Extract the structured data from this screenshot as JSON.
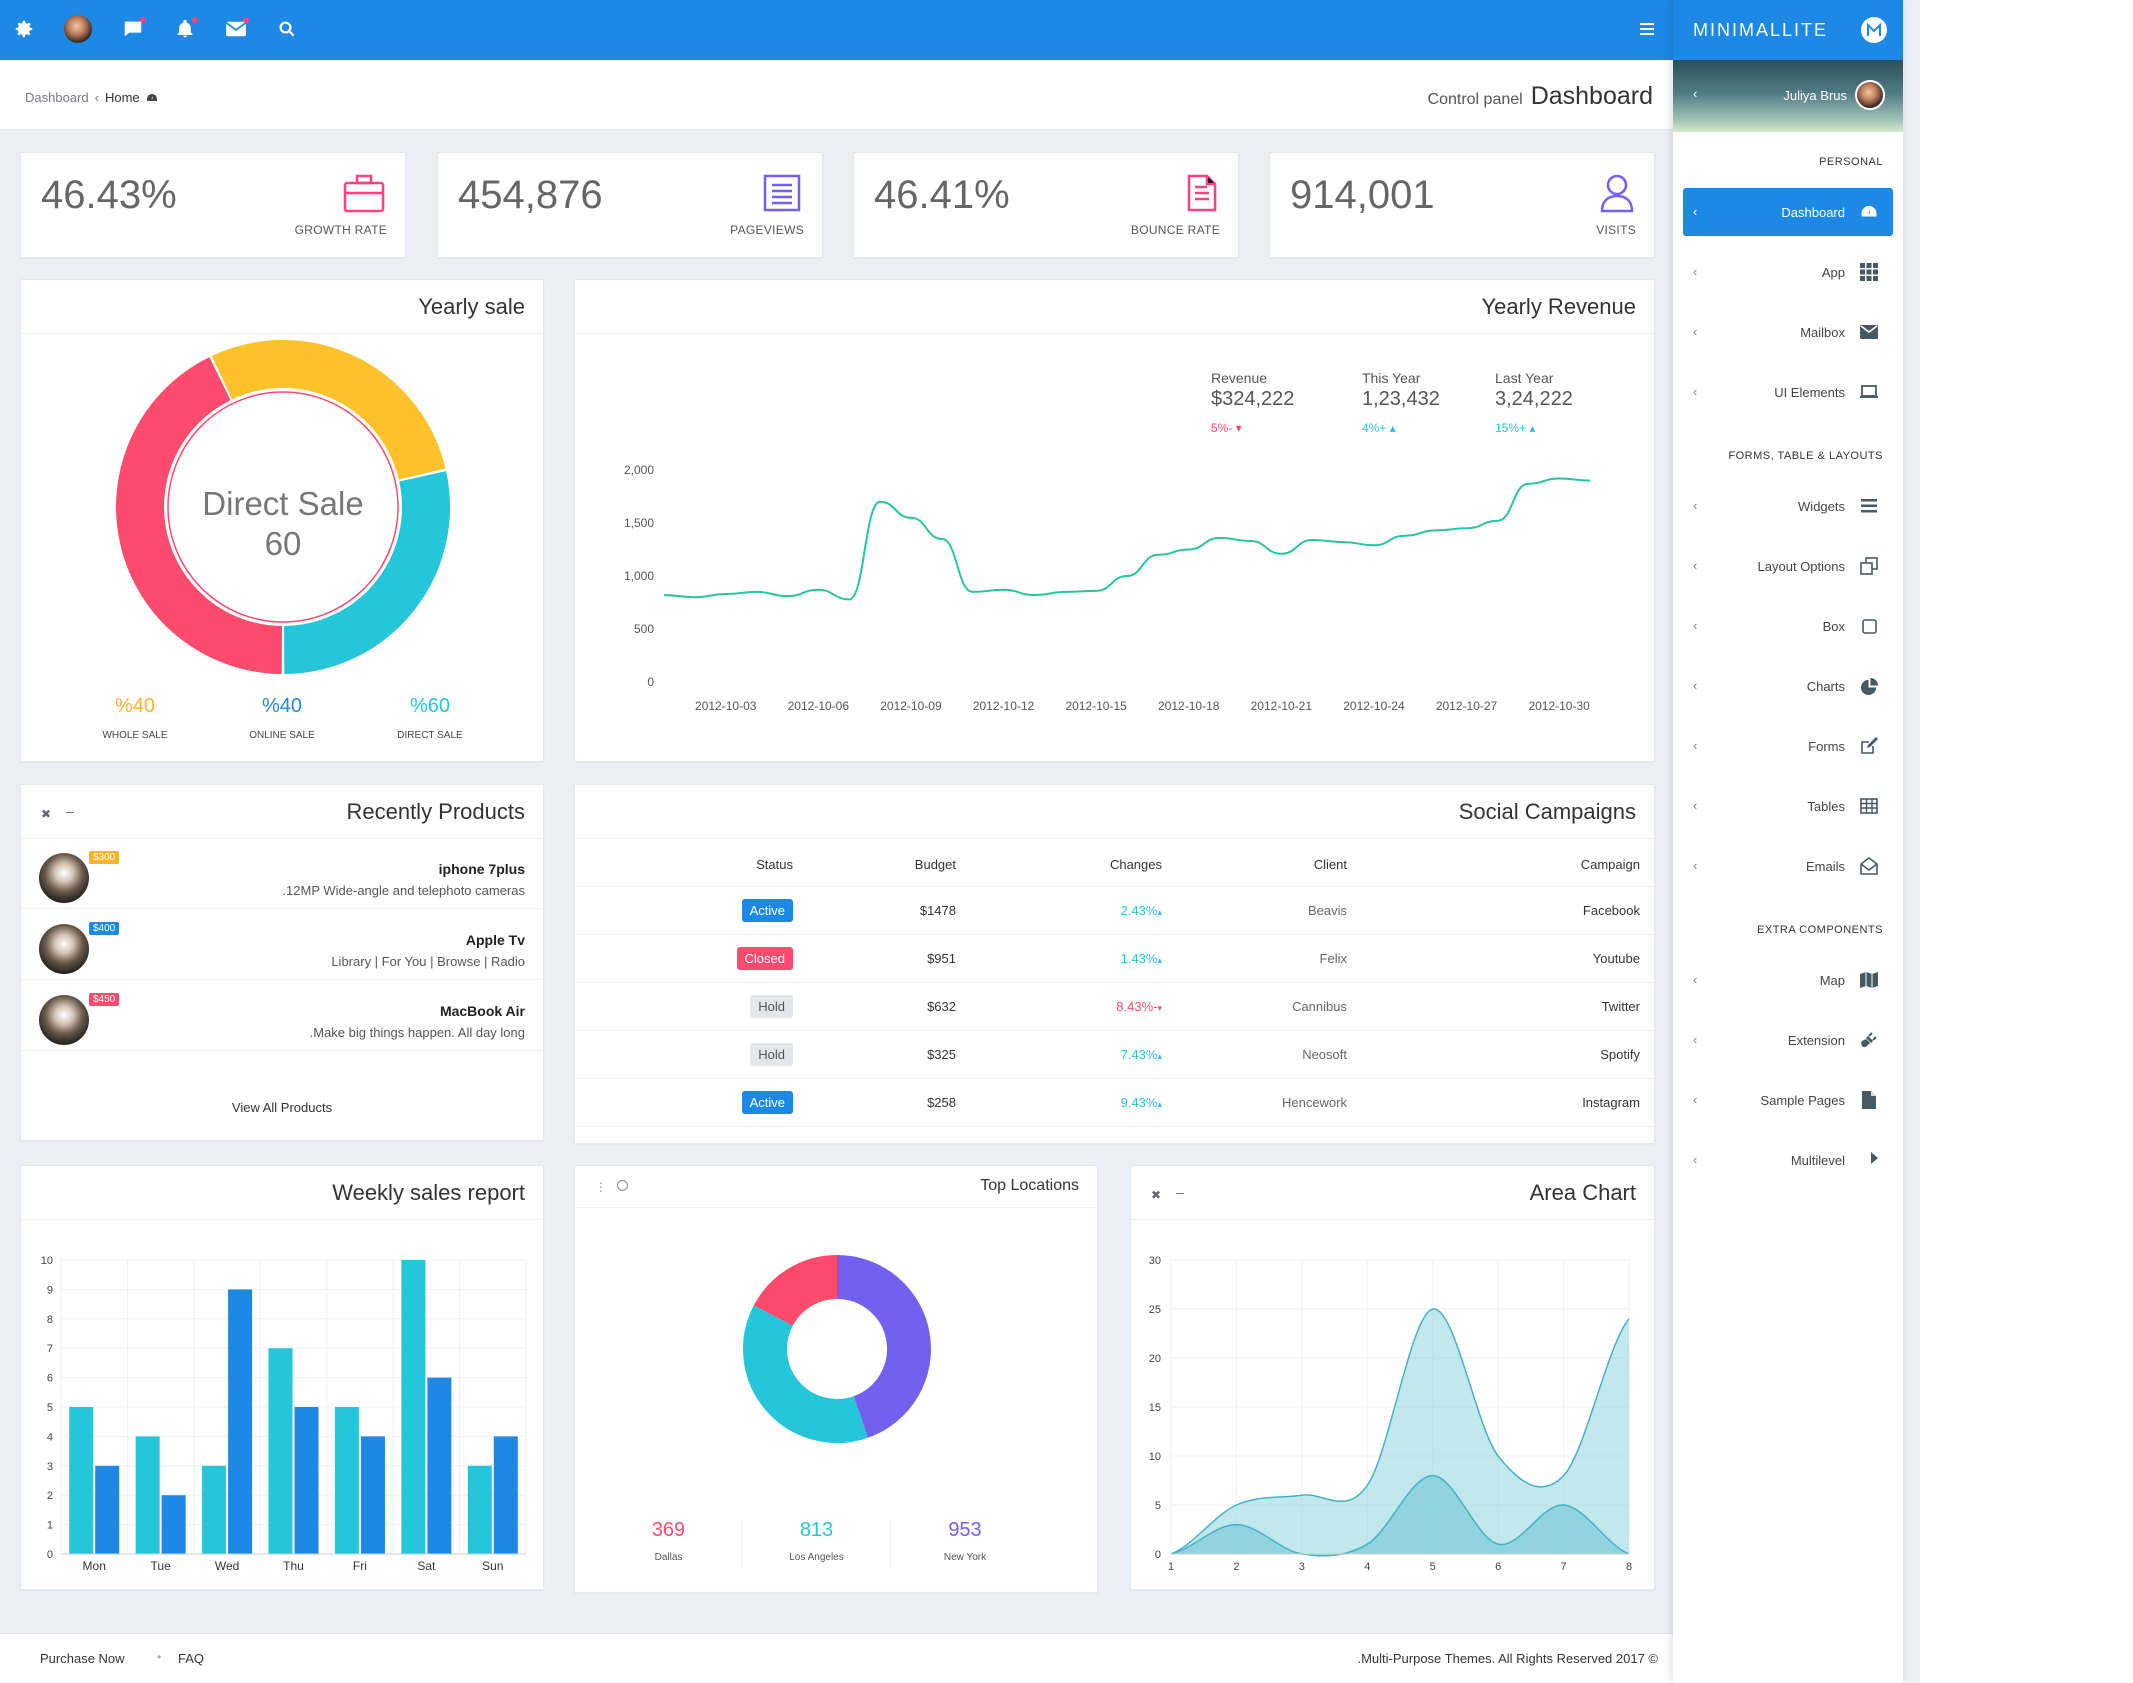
{
  "topbar": {
    "icons": [
      "gear-icon",
      "avatar",
      "chat-icon",
      "bell-icon",
      "mail-icon",
      "search-icon"
    ],
    "menu_icon": "hamburger-icon"
  },
  "breadcrumb": {
    "items": [
      "Dashboard",
      "Home"
    ]
  },
  "page_header": {
    "subtitle": "Control panel",
    "title": "Dashboard"
  },
  "stats": [
    {
      "value": "46.43%",
      "label": "GROWTH RATE",
      "icon": "briefcase-icon",
      "color": "#ff4081"
    },
    {
      "value": "454,876",
      "label": "PAGEVIEWS",
      "icon": "list-icon",
      "color": "#7460ee"
    },
    {
      "value": "46.41%",
      "label": "BOUNCE RATE",
      "icon": "document-icon",
      "color": "#ff4081"
    },
    {
      "value": "914,001",
      "label": "VISITS",
      "icon": "user-icon",
      "color": "#7460ee"
    }
  ],
  "yearly_sale": {
    "title": "Yearly sale",
    "center_label": "Direct Sale",
    "center_value": "60",
    "legend": [
      {
        "value": "%40",
        "label": "WHOLE SALE",
        "color": "#ffb22b"
      },
      {
        "value": "%40",
        "label": "ONLINE SALE",
        "color": "#1e88e5"
      },
      {
        "value": "%60",
        "label": "DIRECT SALE",
        "color": "#26c6da"
      }
    ]
  },
  "yearly_revenue": {
    "title": "Yearly Revenue",
    "stats": [
      {
        "label": "Revenue",
        "value": "$324,222",
        "change": "5%-",
        "color": "#fc4b6c"
      },
      {
        "label": "This Year",
        "value": "1,23,432",
        "change": "4%+",
        "color": "#26c6da"
      },
      {
        "label": "Last Year",
        "value": "3,24,222",
        "change": "15%+",
        "color": "#26c6da"
      }
    ]
  },
  "recent_products": {
    "title": "Recently Products",
    "items": [
      {
        "name": "iphone 7plus",
        "desc": ".12MP Wide-angle and telephoto cameras",
        "price": "$300",
        "price_color": "#ffb22b"
      },
      {
        "name": "Apple Tv",
        "desc": "Library | For You | Browse | Radio",
        "price": "$400",
        "price_color": "#1e88e5"
      },
      {
        "name": "MacBook Air",
        "desc": ".Make big things happen. All day long",
        "price": "$450",
        "price_color": "#fc4b6c"
      }
    ],
    "view_all": "View All Products"
  },
  "social_campaigns": {
    "title": "Social Campaigns",
    "headers": [
      "Status",
      "Budget",
      "Changes",
      "Client",
      "Campaign"
    ],
    "rows": [
      {
        "status": "Active",
        "status_color": "#1e88e5",
        "budget": "$1478",
        "change": "2.43%",
        "change_dir": "up",
        "change_color": "#26c6da",
        "client": "Beavis",
        "campaign": "Facebook"
      },
      {
        "status": "Closed",
        "status_color": "#fc4b6c",
        "budget": "$951",
        "change": "1.43%",
        "change_dir": "up",
        "change_color": "#26c6da",
        "client": "Felix",
        "campaign": "Youtube"
      },
      {
        "status": "Hold",
        "status_color": "#e4e7ea",
        "budget": "$632",
        "change": "8.43%-",
        "change_dir": "down",
        "change_color": "#fc4b6c",
        "client": "Cannibus",
        "campaign": "Twitter"
      },
      {
        "status": "Hold",
        "status_color": "#e4e7ea",
        "budget": "$325",
        "change": "7.43%",
        "change_dir": "up",
        "change_color": "#26c6da",
        "client": "Neosoft",
        "campaign": "Spotify"
      },
      {
        "status": "Active",
        "status_color": "#1e88e5",
        "budget": "$258",
        "change": "9.43%",
        "change_dir": "up",
        "change_color": "#26c6da",
        "client": "Hencework",
        "campaign": "Instagram"
      }
    ]
  },
  "weekly_sales": {
    "title": "Weekly sales report"
  },
  "top_locations": {
    "title": "Top Locations",
    "items": [
      {
        "value": "369",
        "label": "Dallas",
        "color": "#fc4b6c"
      },
      {
        "value": "813",
        "label": "Los Angeles",
        "color": "#26c6da"
      },
      {
        "value": "953",
        "label": "New York",
        "color": "#7460ee"
      }
    ]
  },
  "area_chart": {
    "title": "Area Chart"
  },
  "sidebar": {
    "brand": "MINIMALLITE",
    "user": "Juliya Brus",
    "sections": [
      {
        "label": "PERSONAL",
        "items": [
          {
            "label": "Dashboard",
            "icon": "dashboard-icon",
            "active": true
          },
          {
            "label": "App",
            "icon": "grid-icon"
          },
          {
            "label": "Mailbox",
            "icon": "envelope-icon"
          },
          {
            "label": "UI Elements",
            "icon": "laptop-icon"
          }
        ]
      },
      {
        "label": "FORMS, TABLE & LAYOUTS",
        "items": [
          {
            "label": "Widgets",
            "icon": "bars-icon"
          },
          {
            "label": "Layout Options",
            "icon": "copy-icon"
          },
          {
            "label": "Box",
            "icon": "square-icon"
          },
          {
            "label": "Charts",
            "icon": "pie-chart-icon"
          },
          {
            "label": "Forms",
            "icon": "edit-icon"
          },
          {
            "label": "Tables",
            "icon": "table-icon"
          },
          {
            "label": "Emails",
            "icon": "envelope-open-icon"
          }
        ]
      },
      {
        "label": "EXTRA COMPONENTS",
        "items": [
          {
            "label": "Map",
            "icon": "map-icon"
          },
          {
            "label": "Extension",
            "icon": "plug-icon"
          },
          {
            "label": "Sample Pages",
            "icon": "file-icon"
          },
          {
            "label": "Multilevel",
            "icon": "share-icon"
          }
        ]
      }
    ]
  },
  "footer": {
    "links": [
      "Purchase Now",
      "FAQ"
    ],
    "copyright": ".Multi-Purpose Themes. All Rights Reserved 2017 ©"
  },
  "chart_data": [
    {
      "type": "pie",
      "title": "Yearly sale",
      "categories": [
        "Whole sale",
        "Online sale",
        "Direct sale"
      ],
      "values": [
        40,
        40,
        60
      ],
      "colors": [
        "#ffc22b",
        "#26c6da",
        "#fc4b6c"
      ]
    },
    {
      "type": "line",
      "title": "Yearly Revenue",
      "x": [
        "2012-10-01",
        "2012-10-02",
        "2012-10-03",
        "2012-10-04",
        "2012-10-05",
        "2012-10-06",
        "2012-10-07",
        "2012-10-08",
        "2012-10-09",
        "2012-10-10",
        "2012-10-11",
        "2012-10-12",
        "2012-10-13",
        "2012-10-14",
        "2012-10-15",
        "2012-10-16",
        "2012-10-17",
        "2012-10-18",
        "2012-10-19",
        "2012-10-20",
        "2012-10-21",
        "2012-10-22",
        "2012-10-23",
        "2012-10-24",
        "2012-10-25",
        "2012-10-26",
        "2012-10-27",
        "2012-10-28",
        "2012-10-29",
        "2012-10-30",
        "2012-10-31"
      ],
      "series": [
        {
          "values": [
            820,
            800,
            830,
            850,
            810,
            870,
            780,
            1700,
            1550,
            1350,
            850,
            870,
            820,
            850,
            860,
            1000,
            1200,
            1250,
            1360,
            1330,
            1210,
            1340,
            1320,
            1290,
            1380,
            1430,
            1450,
            1520,
            1870,
            1920,
            1900
          ]
        }
      ],
      "xticks": [
        "2012-10-03",
        "2012-10-06",
        "2012-10-09",
        "2012-10-12",
        "2012-10-15",
        "2012-10-18",
        "2012-10-21",
        "2012-10-24",
        "2012-10-27",
        "2012-10-30"
      ],
      "yticks": [
        "0",
        "500",
        "1,000",
        "1,500",
        "2,000"
      ],
      "ylim": [
        0,
        2000
      ],
      "color": "#26c6a0"
    },
    {
      "type": "bar",
      "title": "Weekly sales report",
      "categories": [
        "Mon",
        "Tue",
        "Wed",
        "Thu",
        "Fri",
        "Sat",
        "Sun"
      ],
      "series": [
        {
          "values": [
            5,
            4,
            3,
            7,
            5,
            10,
            3
          ],
          "color": "#26c6da"
        },
        {
          "values": [
            3,
            2,
            9,
            5,
            4,
            6,
            4
          ],
          "color": "#1e88e5"
        }
      ],
      "ylim": [
        0,
        10
      ]
    },
    {
      "type": "pie",
      "title": "Top Locations",
      "categories": [
        "Dallas",
        "Los Angeles",
        "New York"
      ],
      "values": [
        369,
        813,
        953
      ],
      "colors": [
        "#fc4b6c",
        "#26c6da",
        "#7460ee"
      ]
    },
    {
      "type": "area",
      "title": "Area Chart",
      "x": [
        1,
        2,
        3,
        4,
        5,
        6,
        7,
        8
      ],
      "series": [
        {
          "values": [
            0,
            5,
            6,
            7,
            25,
            10,
            8,
            24
          ],
          "color": "#8fd3dc"
        },
        {
          "values": [
            0,
            3,
            0,
            1,
            8,
            1,
            5,
            0
          ],
          "color": "#6fc8d7"
        }
      ],
      "ylim": [
        0,
        30
      ]
    }
  ]
}
